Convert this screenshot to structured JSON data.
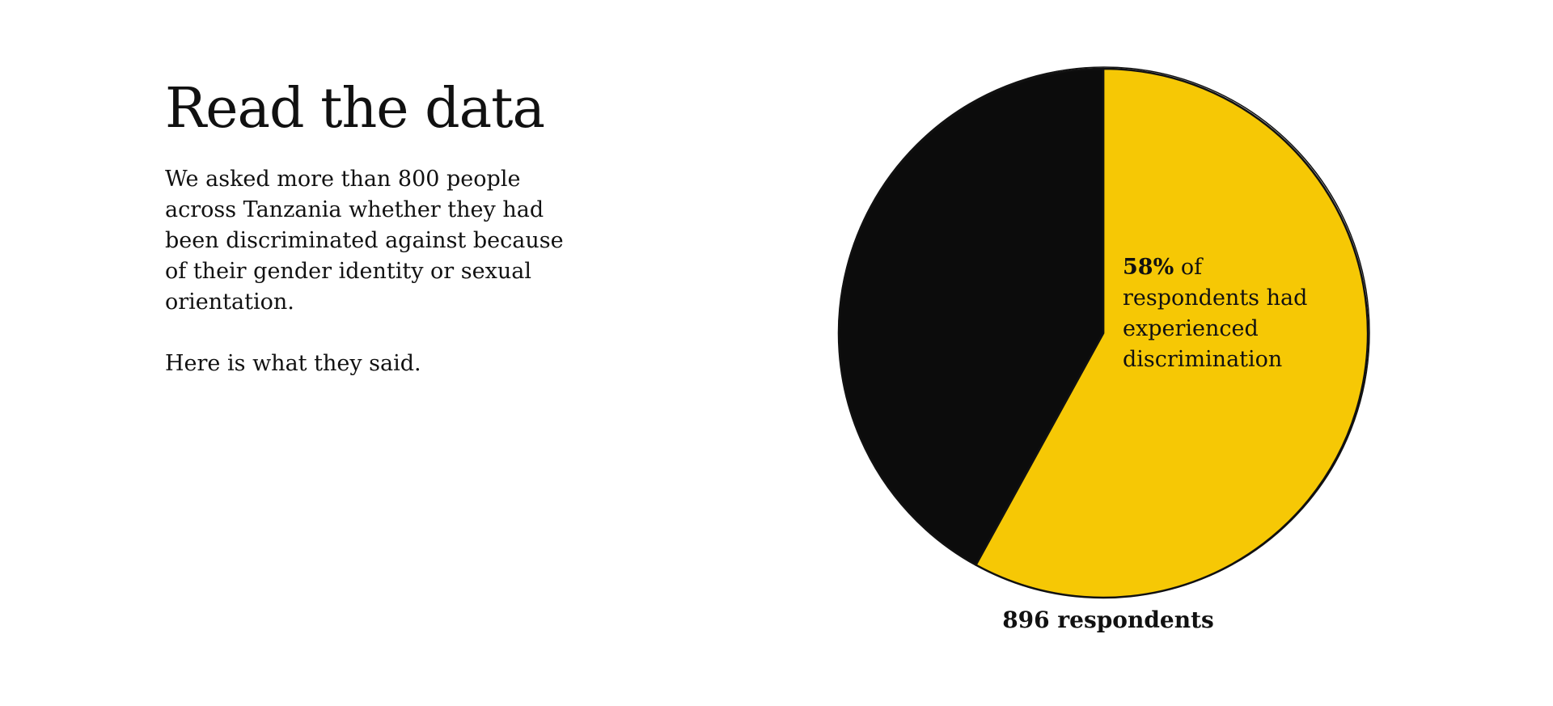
{
  "intro": {
    "title": "Read the data",
    "body": "We asked more than 800 people across Tanzania whether they had been discriminated against because of their gender identity or sexual orientation.",
    "subtext": "Here is what they said."
  },
  "chart_data": {
    "type": "pie",
    "slices": [
      {
        "label": "had experienced discrimination",
        "value": 58,
        "color": "#F6C805"
      },
      {
        "label": "",
        "value": 42,
        "color": "#0C0C0C"
      }
    ],
    "annotation": {
      "value_text": "58%",
      "suffix": " of",
      "text": "respondents had experienced discrimination"
    },
    "total_label": "896 respondents"
  }
}
